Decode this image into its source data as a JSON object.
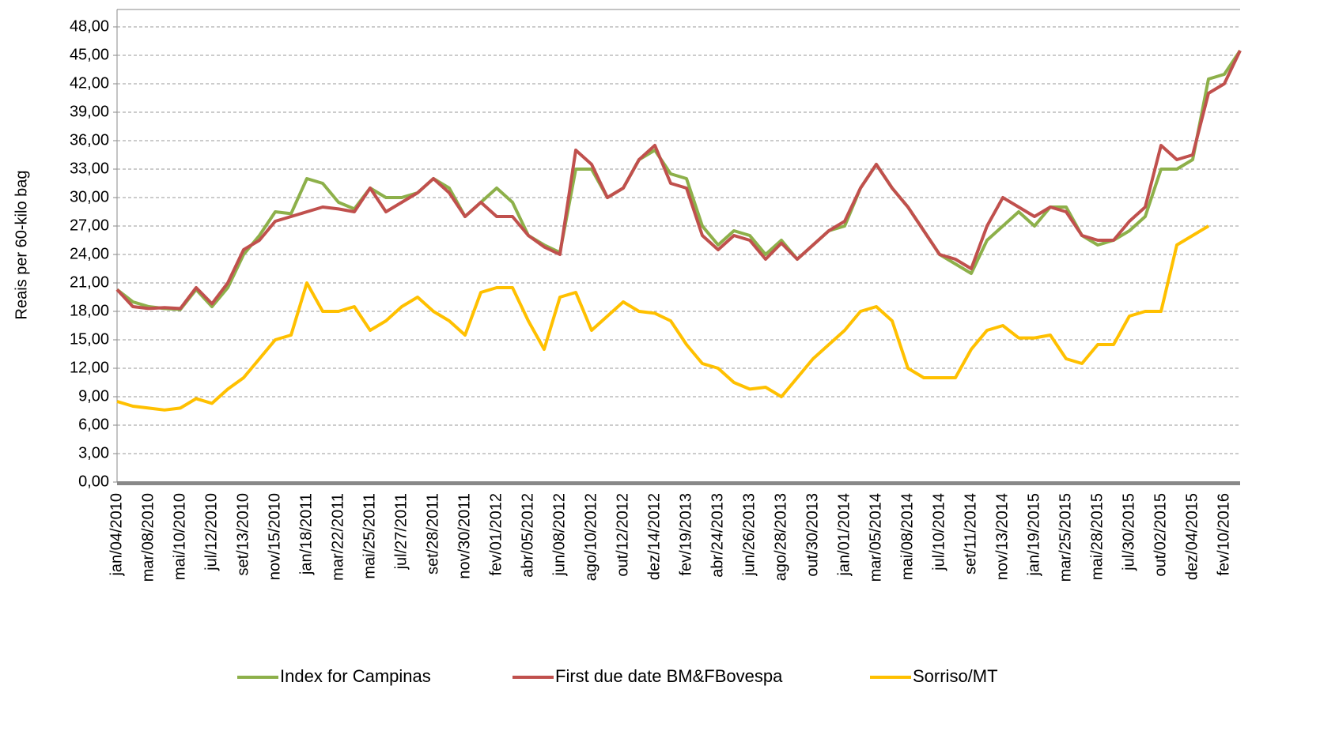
{
  "chart_data": {
    "type": "line",
    "y_label": "Reais per 60-kilo bag",
    "categories": [
      "jan/04/2010",
      null,
      "mar/08/2010",
      null,
      "mai/10/2010",
      null,
      "jul/12/2010",
      null,
      "set/13/2010",
      null,
      "nov/15/2010",
      null,
      "jan/18/2011",
      null,
      "mar/22/2011",
      null,
      "mai/25/2011",
      null,
      "jul/27/2011",
      null,
      "set/28/2011",
      null,
      "nov/30/2011",
      null,
      "fev/01/2012",
      null,
      "abr/05/2012",
      null,
      "jun/08/2012",
      null,
      "ago/10/2012",
      null,
      "out/12/2012",
      null,
      "dez/14/2012",
      null,
      "fev/19/2013",
      null,
      "abr/24/2013",
      null,
      "jun/26/2013",
      null,
      "ago/28/2013",
      null,
      "out/30/2013",
      null,
      "jan/01/2014",
      null,
      "mar/05/2014",
      null,
      "mai/08/2014",
      null,
      "jul/10/2014",
      null,
      "set/11/2014",
      null,
      "nov/13/2014",
      null,
      "jan/19/2015",
      null,
      "mar/25/2015",
      null,
      "mai/28/2015",
      null,
      "jul/30/2015",
      null,
      "out/02/2015",
      null,
      "dez/04/2015",
      null,
      "fev/10/2016",
      null
    ],
    "series": [
      {
        "name": "Index for Campinas",
        "color": "#8db04a",
        "values": [
          20.3,
          19,
          18.5,
          18.3,
          18.2,
          20.3,
          18.5,
          20.5,
          24,
          26,
          28.5,
          28.3,
          32,
          31.5,
          29.5,
          28.8,
          31,
          30,
          30,
          30.5,
          32,
          31,
          28,
          29.5,
          31,
          29.5,
          26,
          25,
          24.2,
          33,
          33,
          30,
          31,
          34,
          35,
          32.5,
          32,
          27,
          25,
          26.5,
          26,
          24,
          25.5,
          23.5,
          25,
          26.5,
          27,
          31,
          33.5,
          31,
          29,
          26.5,
          24,
          23,
          22,
          25.5,
          27,
          28.5,
          27,
          29,
          29,
          26,
          25,
          25.5,
          26.5,
          28,
          33,
          33,
          34,
          42.5,
          43,
          45.5
        ]
      },
      {
        "name": "First due date BM&FBovespa",
        "color": "#c0504d",
        "values": [
          20.3,
          18.5,
          18.3,
          18.4,
          18.3,
          20.5,
          18.8,
          21,
          24.5,
          25.5,
          27.5,
          28,
          28.5,
          29,
          28.8,
          28.5,
          31,
          28.5,
          29.5,
          30.5,
          32,
          30.5,
          28,
          29.5,
          28,
          28,
          26,
          24.8,
          24,
          35,
          33.5,
          30,
          31,
          34,
          35.5,
          31.5,
          31,
          26,
          24.5,
          26,
          25.5,
          23.5,
          25.2,
          23.5,
          25,
          26.5,
          27.5,
          31,
          33.5,
          31,
          29,
          26.5,
          24,
          23.5,
          22.5,
          27,
          30,
          29,
          28,
          29,
          28.5,
          26,
          25.5,
          25.5,
          27.5,
          29,
          35.5,
          34,
          34.5,
          41,
          42,
          45.5
        ]
      },
      {
        "name": "Sorriso/MT",
        "color": "#ffc000",
        "values": [
          8.5,
          8,
          7.8,
          7.6,
          7.8,
          8.8,
          8.3,
          9.8,
          11,
          13,
          15,
          15.5,
          21,
          18,
          18,
          18.5,
          16,
          17,
          18.5,
          19.5,
          18,
          17,
          15.5,
          20,
          20.5,
          20.5,
          17,
          14,
          19.5,
          20,
          16,
          17.5,
          19,
          18,
          17.8,
          17,
          14.5,
          12.5,
          12,
          10.5,
          9.8,
          10,
          9,
          11,
          13,
          14.5,
          16,
          18,
          18.5,
          17,
          12,
          11,
          11,
          11,
          14,
          16,
          16.5,
          15.2,
          15.2,
          15.5,
          13,
          12.5,
          14.5,
          14.5,
          17.5,
          18,
          18,
          25,
          26,
          27,
          null,
          null
        ]
      }
    ],
    "ylim": [
      0,
      48
    ],
    "yticks": [
      {
        "value": 0,
        "label": "0,00"
      },
      {
        "value": 3,
        "label": "3,00"
      },
      {
        "value": 6,
        "label": "6,00"
      },
      {
        "value": 9,
        "label": "9,00"
      },
      {
        "value": 12,
        "label": "12,00"
      },
      {
        "value": 15,
        "label": "15,00"
      },
      {
        "value": 18,
        "label": "18,00"
      },
      {
        "value": 21,
        "label": "21,00"
      },
      {
        "value": 24,
        "label": "24,00"
      },
      {
        "value": 27,
        "label": "27,00"
      },
      {
        "value": 30,
        "label": "30,00"
      },
      {
        "value": 33,
        "label": "33,00"
      },
      {
        "value": 36,
        "label": "36,00"
      },
      {
        "value": 39,
        "label": "39,00"
      },
      {
        "value": 42,
        "label": "42,00"
      },
      {
        "value": 45,
        "label": "45,00"
      },
      {
        "value": 48,
        "label": "48,00"
      }
    ],
    "grid": true,
    "legend": "bottom"
  }
}
